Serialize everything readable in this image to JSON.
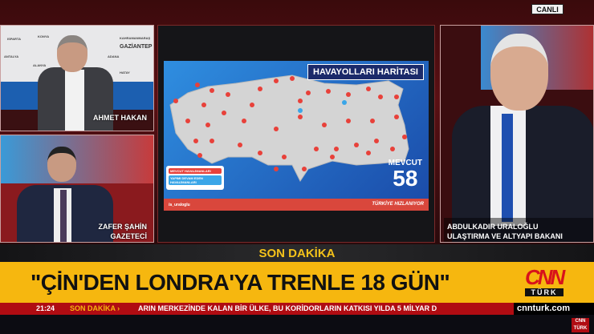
{
  "live_badge": "CANLI",
  "panels": {
    "left_top": {
      "name": "AHMET HAKAN",
      "map_labels": [
        "ISPARTA",
        "KONYA",
        "KAHRAMANMARAŞ",
        "ANTALYA",
        "ALANYA",
        "ADANA",
        "HATAY",
        "GAZİANTEP"
      ]
    },
    "left_bottom": {
      "name": "ZAFER ŞAHİN",
      "title": "GAZETECİ"
    },
    "right": {
      "name": "ABDULKADIR URALOĞLU",
      "title": "ULAŞTIRMA VE ALTYAPI BAKANI"
    },
    "center": {
      "map_title": "HAVAYOLLARI HARİTASI",
      "count_label": "MEVCUT",
      "count": "58",
      "legend": [
        "MEVCUT HAVALİMANLARI",
        "YAPIMI DEVAM EDEN HAVALİMANLARI"
      ],
      "footer_handle": "/a_uraloglu",
      "footer_slogan": "TÜRKİYE HIZLANIYOR",
      "colors": {
        "pin": "#e8413a",
        "pin_new": "#3aa6e8",
        "land": "#d4d4d4",
        "sea": "#2f8ee0"
      }
    }
  },
  "breaking_label": "SON DAKİKA",
  "headline": "\"ÇİN'DEN LONDRA'YA TRENLE 18 GÜN\"",
  "logo": {
    "top": "CNN",
    "bottom": "TÜRK"
  },
  "ticker": {
    "time": "21:24",
    "label": "SON DAKİKA ›",
    "text": "ARIN MERKEZİNDE KALAN BİR ÜLKE, BU KORİDORLARIN KATKISI YILDA 5 MİLYAR D",
    "url": "cnnturk.com"
  },
  "colors": {
    "yellow": "#f6b70f",
    "red": "#b00c12"
  }
}
